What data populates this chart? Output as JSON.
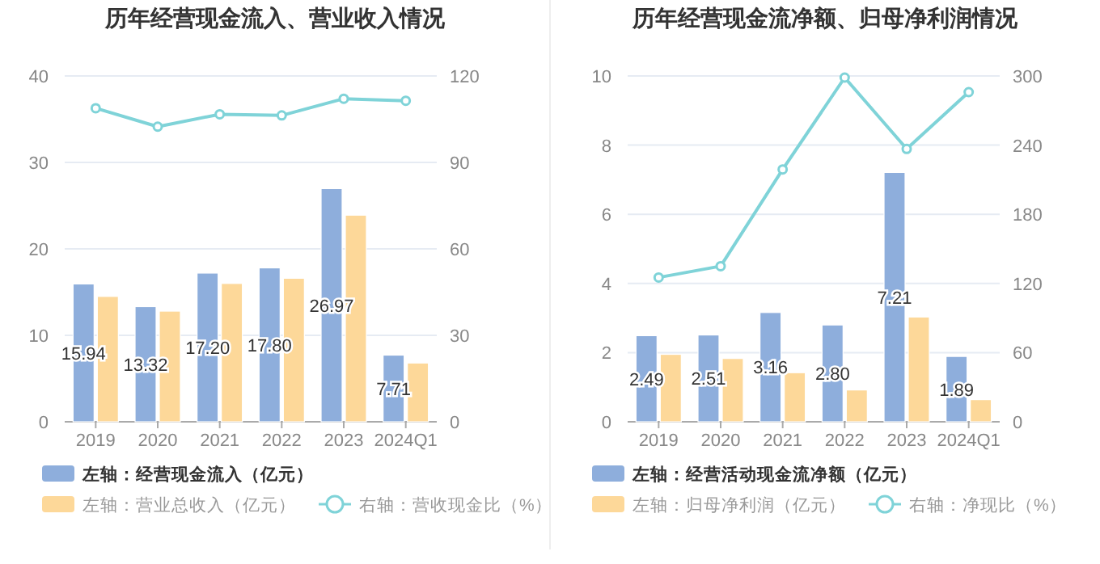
{
  "chart_data": [
    {
      "type": "bar",
      "title": "历年经营现金流入、营业收入情况",
      "categories": [
        "2019",
        "2020",
        "2021",
        "2022",
        "2023",
        "2024Q1"
      ],
      "series": [
        {
          "name": "左轴：经营现金流入（亿元）",
          "color": "#8eaedc",
          "values": [
            15.94,
            13.32,
            17.2,
            17.8,
            26.97,
            7.71
          ],
          "value_labels": [
            "15.94",
            "13.32",
            "17.20",
            "17.80",
            "26.97",
            "7.71"
          ]
        },
        {
          "name": "左轴：营业总收入（亿元）",
          "color": "#fdd899",
          "values": [
            14.5,
            12.8,
            16.0,
            16.6,
            23.9,
            6.8
          ]
        },
        {
          "name": "右轴：营收现金比（%）",
          "type": "line",
          "axis": "y2",
          "color": "#7fd3d8",
          "marker": "circle",
          "values": [
            108.8,
            102.4,
            106.7,
            106.3,
            112.1,
            111.4
          ]
        }
      ],
      "ylim": [
        0,
        40
      ],
      "yticks": [
        0,
        10,
        20,
        30,
        40
      ],
      "y2lim": [
        0,
        120
      ],
      "y2ticks": [
        0,
        30,
        60,
        90,
        120
      ],
      "grid": "y",
      "legend": "bottom"
    },
    {
      "type": "bar",
      "title": "历年经营现金流净额、归母净利润情况",
      "categories": [
        "2019",
        "2020",
        "2021",
        "2022",
        "2023",
        "2024Q1"
      ],
      "series": [
        {
          "name": "左轴：经营活动现金流净额（亿元）",
          "color": "#8eaedc",
          "values": [
            2.49,
            2.51,
            3.16,
            2.8,
            7.21,
            1.89
          ],
          "value_labels": [
            "2.49",
            "2.51",
            "3.16",
            "2.80",
            "7.21",
            "1.89"
          ]
        },
        {
          "name": "左轴：归母净利润（亿元）",
          "color": "#fdd899",
          "values": [
            1.95,
            1.83,
            1.42,
            0.92,
            3.03,
            0.64
          ]
        },
        {
          "name": "右轴：净现比（%）",
          "type": "line",
          "axis": "y2",
          "color": "#7fd3d8",
          "marker": "circle",
          "values": [
            125.2,
            135.0,
            218.9,
            298.6,
            236.7,
            286.0
          ]
        }
      ],
      "ylim": [
        0,
        10
      ],
      "yticks": [
        0,
        2,
        4,
        6,
        8,
        10
      ],
      "y2lim": [
        0,
        300
      ],
      "y2ticks": [
        0,
        60,
        120,
        180,
        240,
        300
      ],
      "grid": "y",
      "legend": "bottom"
    }
  ]
}
